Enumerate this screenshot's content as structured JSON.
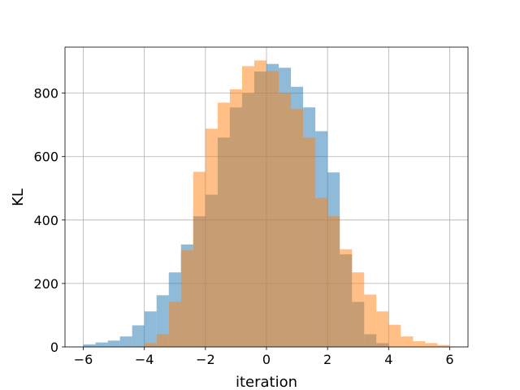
{
  "chart_data": {
    "type": "bar",
    "chart_kind": "overlaid histogram",
    "xlabel": "iteration",
    "ylabel": "KL",
    "xlim": [
      -6.6,
      6.6
    ],
    "ylim": [
      0,
      945
    ],
    "xticks": [
      -6,
      -4,
      -2,
      0,
      2,
      4,
      6
    ],
    "yticks": [
      0,
      200,
      400,
      600,
      800
    ],
    "grid": true,
    "bin_width": 0.4,
    "series": [
      {
        "color": "#1f77b4",
        "opacity": 0.5,
        "bins": [
          {
            "x0": -6.0,
            "x1": -5.6,
            "value": 8
          },
          {
            "x0": -5.6,
            "x1": -5.2,
            "value": 14
          },
          {
            "x0": -5.2,
            "x1": -4.8,
            "value": 20
          },
          {
            "x0": -4.8,
            "x1": -4.4,
            "value": 33
          },
          {
            "x0": -4.4,
            "x1": -4.0,
            "value": 68
          },
          {
            "x0": -4.0,
            "x1": -3.6,
            "value": 112
          },
          {
            "x0": -3.6,
            "x1": -3.2,
            "value": 163
          },
          {
            "x0": -3.2,
            "x1": -2.8,
            "value": 235
          },
          {
            "x0": -2.8,
            "x1": -2.4,
            "value": 323
          },
          {
            "x0": -2.4,
            "x1": -2.0,
            "value": 412
          },
          {
            "x0": -2.0,
            "x1": -1.6,
            "value": 480
          },
          {
            "x0": -1.6,
            "x1": -1.2,
            "value": 660
          },
          {
            "x0": -1.2,
            "x1": -0.8,
            "value": 755
          },
          {
            "x0": -0.8,
            "x1": -0.4,
            "value": 800
          },
          {
            "x0": -0.4,
            "x1": 0.0,
            "value": 868
          },
          {
            "x0": 0.0,
            "x1": 0.4,
            "value": 892
          },
          {
            "x0": 0.4,
            "x1": 0.8,
            "value": 880
          },
          {
            "x0": 0.8,
            "x1": 1.2,
            "value": 820
          },
          {
            "x0": 1.2,
            "x1": 1.6,
            "value": 755
          },
          {
            "x0": 1.6,
            "x1": 2.0,
            "value": 680
          },
          {
            "x0": 2.0,
            "x1": 2.4,
            "value": 550
          },
          {
            "x0": 2.4,
            "x1": 2.8,
            "value": 292
          },
          {
            "x0": 2.8,
            "x1": 3.2,
            "value": 142
          },
          {
            "x0": 3.2,
            "x1": 3.6,
            "value": 40
          },
          {
            "x0": 3.6,
            "x1": 4.0,
            "value": 12
          }
        ]
      },
      {
        "color": "#ff7f0e",
        "opacity": 0.5,
        "bins": [
          {
            "x0": -4.0,
            "x1": -3.6,
            "value": 12
          },
          {
            "x0": -3.6,
            "x1": -3.2,
            "value": 40
          },
          {
            "x0": -3.2,
            "x1": -2.8,
            "value": 142
          },
          {
            "x0": -2.8,
            "x1": -2.4,
            "value": 305
          },
          {
            "x0": -2.4,
            "x1": -2.0,
            "value": 552
          },
          {
            "x0": -2.0,
            "x1": -1.6,
            "value": 688
          },
          {
            "x0": -1.6,
            "x1": -1.2,
            "value": 770
          },
          {
            "x0": -1.2,
            "x1": -0.8,
            "value": 812
          },
          {
            "x0": -0.8,
            "x1": -0.4,
            "value": 885
          },
          {
            "x0": -0.4,
            "x1": 0.0,
            "value": 903
          },
          {
            "x0": 0.0,
            "x1": 0.4,
            "value": 870
          },
          {
            "x0": 0.4,
            "x1": 0.8,
            "value": 800
          },
          {
            "x0": 0.8,
            "x1": 1.2,
            "value": 750
          },
          {
            "x0": 1.2,
            "x1": 1.6,
            "value": 660
          },
          {
            "x0": 1.6,
            "x1": 2.0,
            "value": 470
          },
          {
            "x0": 2.0,
            "x1": 2.4,
            "value": 412
          },
          {
            "x0": 2.4,
            "x1": 2.8,
            "value": 308
          },
          {
            "x0": 2.8,
            "x1": 3.2,
            "value": 235
          },
          {
            "x0": 3.2,
            "x1": 3.6,
            "value": 165
          },
          {
            "x0": 3.6,
            "x1": 4.0,
            "value": 112
          },
          {
            "x0": 4.0,
            "x1": 4.4,
            "value": 70
          },
          {
            "x0": 4.4,
            "x1": 4.8,
            "value": 33
          },
          {
            "x0": 4.8,
            "x1": 5.2,
            "value": 18
          },
          {
            "x0": 5.2,
            "x1": 5.6,
            "value": 12
          },
          {
            "x0": 5.6,
            "x1": 6.0,
            "value": 6
          }
        ]
      }
    ]
  }
}
